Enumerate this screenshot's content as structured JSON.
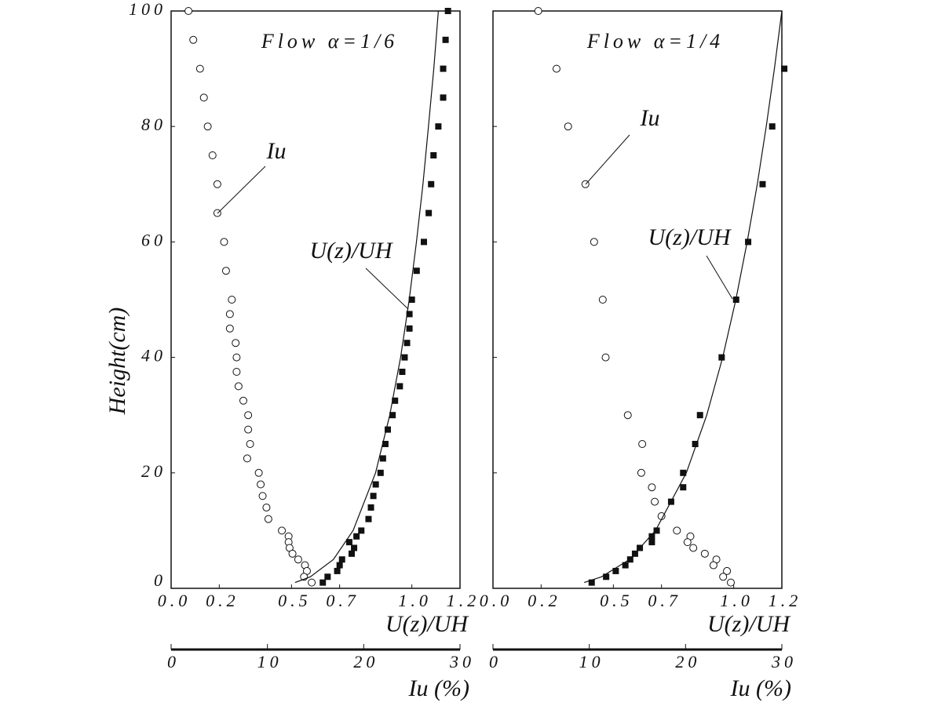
{
  "chart_data": [
    {
      "type": "scatter",
      "title": "Flow α=1/6",
      "xlabel": "U(z)/UH",
      "ylabel": "Height(cm)",
      "x2label": "Iu (%)",
      "xlim": [
        0,
        1.2
      ],
      "xticks": [
        {
          "value": 0,
          "label": "0.0"
        },
        0.2,
        0.5,
        0.7,
        {
          "value": 1,
          "label": "1.0"
        },
        1.2
      ],
      "x2lim": [
        0,
        30
      ],
      "x2ticks": [
        0,
        10,
        20,
        30
      ],
      "ylim": [
        0,
        100
      ],
      "yticks": [
        0,
        20,
        40,
        60,
        80,
        100
      ],
      "ytick_labels": true,
      "series": [
        {
          "name": "U(z)/UH",
          "marker": "square",
          "color": "#111",
          "x": [
            1.15,
            1.14,
            1.13,
            1.13,
            1.11,
            1.09,
            1.08,
            1.07,
            1.05,
            1.02,
            1.0,
            0.99,
            0.99,
            0.98,
            0.97,
            0.96,
            0.95,
            0.93,
            0.92,
            0.9,
            0.89,
            0.88,
            0.87,
            0.85,
            0.84,
            0.83,
            0.82,
            0.79,
            0.77,
            0.74,
            0.76,
            0.75,
            0.71,
            0.7,
            0.69,
            0.65,
            0.63
          ],
          "y": [
            100,
            95,
            90,
            85,
            80,
            75,
            70,
            65,
            60,
            55,
            50,
            47.5,
            45,
            42.5,
            40,
            37.5,
            35,
            32.5,
            30,
            27.5,
            25,
            22.5,
            20,
            18,
            16,
            14,
            12,
            10,
            9,
            8,
            7,
            6,
            5,
            4,
            3,
            2,
            1
          ]
        },
        {
          "name": "Iu",
          "marker": "circle",
          "axis": "x2",
          "color": "#111",
          "x": [
            1.8,
            2.3,
            3.0,
            3.4,
            3.8,
            4.3,
            4.8,
            4.8,
            5.5,
            5.7,
            6.3,
            6.1,
            6.1,
            6.7,
            6.8,
            6.8,
            7.0,
            7.5,
            8.0,
            8.0,
            8.2,
            7.9,
            9.1,
            9.3,
            9.5,
            9.9,
            10.1,
            11.5,
            12.2,
            12.2,
            12.3,
            12.6,
            13.2,
            13.9,
            14.1,
            13.8,
            14.6
          ],
          "y": [
            100,
            95,
            90,
            85,
            80,
            75,
            70,
            65,
            60,
            55,
            50,
            47.5,
            45,
            42.5,
            40,
            37.5,
            35,
            32.5,
            30,
            27.5,
            25,
            22.5,
            20,
            18,
            16,
            14,
            12,
            10,
            9,
            8,
            7,
            6,
            5,
            4,
            3,
            2,
            1
          ]
        },
        {
          "marker": "line",
          "color": "#111",
          "x": [
            0.515,
            0.578,
            0.674,
            0.756,
            0.849,
            0.908,
            0.953,
            0.989,
            1.019,
            1.046,
            1.069,
            1.091,
            1.11
          ],
          "y": [
            1,
            2,
            5,
            10,
            20,
            30,
            40,
            50,
            60,
            70,
            80,
            90,
            100
          ]
        }
      ]
    },
    {
      "type": "scatter",
      "title": "Flow α=1/4",
      "xlabel": "U(z)/UH",
      "x2label": "Iu (%)",
      "xlim": [
        0,
        1.2
      ],
      "xticks": [
        {
          "value": 0,
          "label": "0.0"
        },
        0.2,
        0.5,
        0.7,
        {
          "value": 1,
          "label": "1.0"
        },
        1.2
      ],
      "x2lim": [
        0,
        30
      ],
      "x2ticks": [
        0,
        10,
        20,
        30
      ],
      "ylim": [
        0,
        100
      ],
      "yticks": [
        0,
        20,
        40,
        60,
        80,
        100
      ],
      "ytick_labels": false,
      "series": [
        {
          "name": "U(z)/UH",
          "marker": "square",
          "color": "#111",
          "x": [
            1.21,
            1.16,
            1.12,
            1.06,
            1.01,
            0.95,
            0.86,
            0.84,
            0.79,
            0.79,
            0.74,
            0.68,
            0.66,
            0.66,
            0.61,
            0.59,
            0.57,
            0.55,
            0.51,
            0.47,
            0.41
          ],
          "y": [
            90,
            80,
            70,
            60,
            50,
            40,
            30,
            25,
            20,
            17.5,
            15,
            10,
            9,
            8,
            7,
            6,
            5,
            4,
            3,
            2,
            1
          ]
        },
        {
          "name": "Iu",
          "marker": "circle",
          "axis": "x2",
          "color": "#111",
          "x": [
            4.7,
            6.6,
            7.8,
            9.6,
            10.5,
            11.4,
            11.7,
            14.0,
            15.5,
            15.4,
            16.5,
            16.8,
            17.5,
            19.1,
            20.5,
            20.2,
            20.8,
            22.0,
            23.2,
            22.9,
            24.3,
            23.9,
            24.7
          ],
          "y": [
            100,
            90,
            80,
            70,
            60,
            50,
            40,
            30,
            25,
            20,
            17.5,
            15,
            12.5,
            10,
            9,
            8,
            7,
            6,
            5,
            4,
            3,
            2,
            1
          ]
        },
        {
          "marker": "line",
          "color": "#111",
          "x": [
            0.379,
            0.451,
            0.567,
            0.675,
            0.803,
            0.888,
            0.954,
            1.009,
            1.056,
            1.098,
            1.135,
            1.169,
            1.2
          ],
          "y": [
            1,
            2,
            5,
            10,
            20,
            30,
            40,
            50,
            60,
            70,
            80,
            90,
            100
          ]
        }
      ]
    }
  ]
}
